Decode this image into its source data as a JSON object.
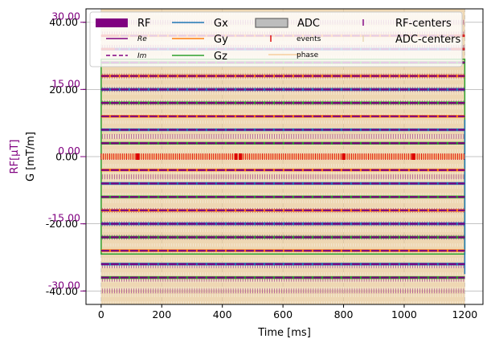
{
  "chart_data": {
    "type": "line",
    "title": "",
    "xlabel": "Time [ms]",
    "ylabel_left_primary": "G [mT/m]",
    "ylabel_left_secondary": "RF[µT]",
    "xlim": [
      -50,
      1260
    ],
    "x_ticks": [
      0,
      200,
      400,
      600,
      800,
      1000,
      1200
    ],
    "x_tick_labels": [
      "0",
      "200",
      "400",
      "600",
      "800",
      "1000",
      "1200"
    ],
    "g_ylim": [
      -44,
      44
    ],
    "g_ticks": [
      40,
      20,
      0,
      -20,
      -40
    ],
    "g_tick_labels": [
      "40.00",
      "20.00",
      "0.00",
      "-20.00",
      "-40.00"
    ],
    "rf_ticks": [
      30,
      15,
      0,
      -15,
      -30
    ],
    "rf_tick_labels": [
      "30.00",
      "15.00",
      "0.00",
      "-15.00",
      "-30.00"
    ],
    "grid": true,
    "legend_position": "upper, inside",
    "legend": [
      {
        "label": "RF",
        "style": "patch",
        "color": "#800080"
      },
      {
        "label": "Re",
        "style": "line",
        "color": "#800080"
      },
      {
        "label": "Im",
        "style": "dashed",
        "color": "#800080"
      },
      {
        "label": "Gx",
        "style": "line",
        "color": "#1f77b4"
      },
      {
        "label": "Gy",
        "style": "line",
        "color": "#ff7f0e"
      },
      {
        "label": "Gz",
        "style": "line",
        "color": "#2ca02c"
      },
      {
        "label": "ADC",
        "style": "patch",
        "color": "#999999"
      },
      {
        "label": "events",
        "style": "marker",
        "color": "#dd0000"
      },
      {
        "label": "phase",
        "style": "line",
        "color": "#f5c78e"
      },
      {
        "label": "RF-centers",
        "style": "marker",
        "color": "#800080"
      },
      {
        "label": "ADC-centers",
        "style": "marker",
        "color": "#e8d7b0"
      }
    ],
    "sequence": {
      "t_start": 0,
      "t_end": 1200,
      "gradient_levels": [
        -36,
        -32,
        -28,
        -24,
        -20,
        -16,
        -12,
        -8,
        -4,
        4,
        8,
        12,
        16,
        20,
        24,
        28,
        32,
        36
      ],
      "gradient_edge_ramps": [
        32,
        36,
        -32,
        -36
      ]
    },
    "colors": {
      "rf": "#800080",
      "gx": "#1f77b4",
      "gy": "#ff7f0e",
      "gz": "#2ca02c",
      "adc": "#e8c99a",
      "events": "#dd0000",
      "phase": "#f5c78e",
      "red": "#d62728",
      "grid": "#b0b0b0"
    }
  }
}
